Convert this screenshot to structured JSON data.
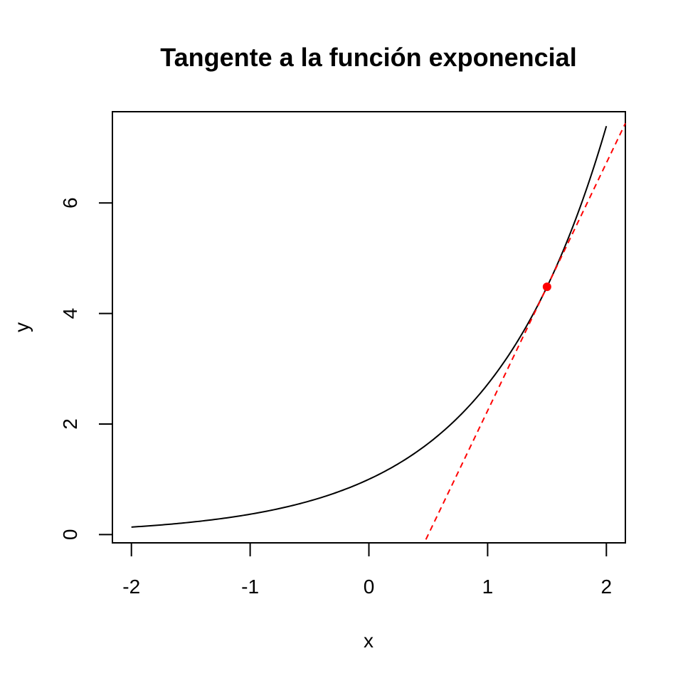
{
  "chart_data": {
    "type": "line",
    "title": "Tangente a la función exponencial",
    "xlabel": "x",
    "ylabel": "y",
    "xlim": [
      -2.16,
      2.16
    ],
    "ylim": [
      -0.15,
      7.65
    ],
    "x_ticks": [
      -2,
      -1,
      0,
      1,
      2
    ],
    "y_ticks": [
      0,
      2,
      4,
      6
    ],
    "grid": false,
    "legend": "none",
    "series": [
      {
        "function": "exp(x)",
        "x_range": [
          -2,
          2
        ],
        "color": "#000000",
        "style": "solid"
      },
      {
        "function": "tangent line at x = 1.5",
        "x_range": [
          0.48,
          2.16
        ],
        "slope": 4.4817,
        "point": [
          1.5,
          4.4817
        ],
        "color": "#ff0000",
        "style": "dashed"
      }
    ],
    "points": [
      {
        "x": 1.5,
        "y": 4.4817,
        "color": "#ff0000"
      }
    ]
  }
}
